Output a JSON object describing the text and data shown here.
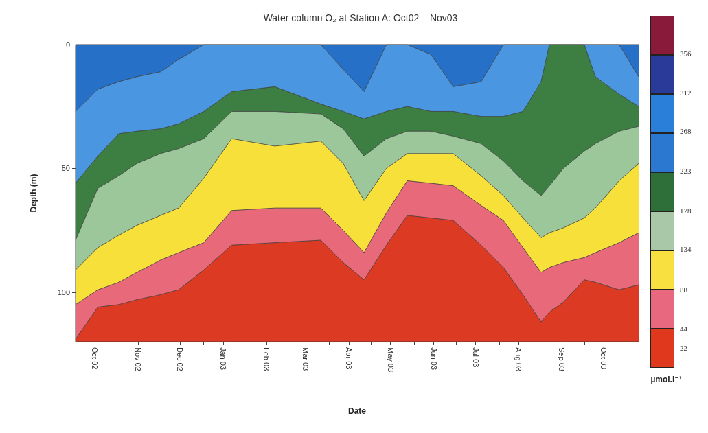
{
  "chart_data": {
    "type": "area",
    "title": "Water column O₂ at Station A: Oct02 – Nov03",
    "xlabel": "Date",
    "ylabel": "Depth (m)",
    "clabel": "µmol.l⁻¹",
    "stacked": true,
    "x": [
      "2002-10-01",
      "2002-10-17",
      "2002-11-01",
      "2002-11-14",
      "2002-12-01",
      "2002-12-14",
      "2003-01-01",
      "2003-01-21",
      "2003-02-21",
      "2003-03-26",
      "2003-04-11",
      "2003-04-26",
      "2003-05-12",
      "2003-05-27",
      "2003-06-13",
      "2003-06-29",
      "2003-07-19",
      "2003-08-04",
      "2003-08-18",
      "2003-08-31",
      "2003-09-06",
      "2003-09-16",
      "2003-10-01",
      "2003-10-09",
      "2003-10-26",
      "2003-11-09"
    ],
    "xlim": [
      "2002-10-01",
      "2003-11-09"
    ],
    "xticks": [
      {
        "value": "2002-10-15",
        "label": "Oct 02"
      },
      {
        "value": "2002-11-01",
        "label": null
      },
      {
        "value": "2002-11-15",
        "label": "Nov 02"
      },
      {
        "value": "2002-12-01",
        "label": null
      },
      {
        "value": "2002-12-15",
        "label": "Dec 02"
      },
      {
        "value": "2003-01-01",
        "label": null
      },
      {
        "value": "2003-01-15",
        "label": "Jan 03"
      },
      {
        "value": "2003-02-01",
        "label": null
      },
      {
        "value": "2003-02-15",
        "label": "Feb 03"
      },
      {
        "value": "2003-03-01",
        "label": null
      },
      {
        "value": "2003-03-15",
        "label": "Mar 03"
      },
      {
        "value": "2003-04-01",
        "label": null
      },
      {
        "value": "2003-04-15",
        "label": "Apr 03"
      },
      {
        "value": "2003-05-01",
        "label": null
      },
      {
        "value": "2003-05-15",
        "label": "May 03"
      },
      {
        "value": "2003-06-01",
        "label": null
      },
      {
        "value": "2003-06-15",
        "label": "Jun 03"
      },
      {
        "value": "2003-07-01",
        "label": null
      },
      {
        "value": "2003-07-15",
        "label": "Jul 03"
      },
      {
        "value": "2003-08-01",
        "label": null
      },
      {
        "value": "2003-08-15",
        "label": "Aug 03"
      },
      {
        "value": "2003-09-01",
        "label": null
      },
      {
        "value": "2003-09-15",
        "label": "Sep 03"
      },
      {
        "value": "2003-10-01",
        "label": null
      },
      {
        "value": "2003-10-15",
        "label": "Oct 03"
      },
      {
        "value": "2003-11-01",
        "label": null
      }
    ],
    "ylim": [
      120,
      0
    ],
    "yticks": [
      0,
      50,
      100
    ],
    "clim": [
      0,
      400
    ],
    "cticks": [
      22,
      44,
      88,
      134,
      178,
      223,
      268,
      312,
      356
    ],
    "colors": [
      "#e0381c",
      "#e86880",
      "#f8e040",
      "#a8c8a8",
      "#2e6e38",
      "#2a78d0",
      "#2a80d8",
      "#2a3a98",
      "#8a1a3a"
    ],
    "series": [
      {
        "color": "#2670c8",
        "values": [
          27,
          18,
          15,
          13,
          11,
          6,
          0,
          0,
          0,
          0,
          10,
          19,
          0,
          0,
          4,
          17,
          15,
          0,
          0,
          0,
          0,
          0,
          0,
          0,
          0,
          13
        ]
      },
      {
        "color": "#4a96e0",
        "values": [
          29,
          27,
          21,
          22,
          23,
          26,
          27,
          19,
          17,
          24,
          17,
          11,
          27,
          25,
          23,
          10,
          14,
          29,
          27,
          15,
          0,
          0,
          0,
          13,
          20,
          12
        ]
      },
      {
        "color": "#3d7e42",
        "values": [
          23,
          13,
          17,
          13,
          10,
          10,
          11,
          8,
          10,
          4,
          7,
          15,
          11,
          10,
          8,
          10,
          11,
          18,
          28,
          46,
          57,
          50,
          43,
          27,
          15,
          8
        ]
      },
      {
        "color": "#9cc79b",
        "values": [
          12,
          24,
          24,
          25,
          25,
          24,
          16,
          11,
          14,
          11,
          14,
          18,
          12,
          9,
          9,
          7,
          13,
          14,
          15,
          17,
          19,
          24,
          27,
          26,
          20,
          15
        ]
      },
      {
        "color": "#f8e03a",
        "values": [
          14,
          17,
          19,
          19,
          18,
          18,
          26,
          29,
          25,
          27,
          27,
          21,
          18,
          11,
          12,
          13,
          12,
          10,
          12,
          14,
          14,
          14,
          16,
          18,
          25,
          28
        ]
      },
      {
        "color": "#e8697a",
        "values": [
          14,
          7,
          9,
          11,
          14,
          15,
          11,
          14,
          14,
          13,
          13,
          11,
          13,
          14,
          14,
          14,
          16,
          19,
          19,
          20,
          18,
          16,
          9,
          12,
          19,
          21
        ]
      },
      {
        "color": "#dc3a22",
        "values": [
          1,
          14,
          15,
          17,
          19,
          21,
          29,
          39,
          40,
          41,
          32,
          25,
          39,
          51,
          50,
          49,
          39,
          30,
          19,
          8,
          12,
          16,
          25,
          24,
          21,
          23
        ]
      }
    ]
  }
}
